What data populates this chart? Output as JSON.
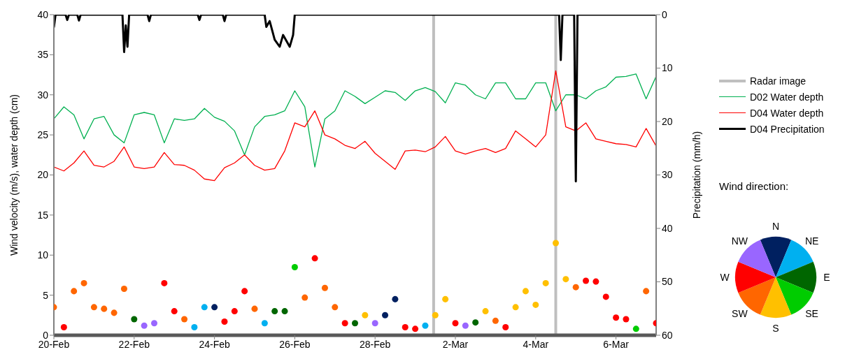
{
  "chart_data": [
    {
      "type": "line",
      "ylabel": "Wind velocity (m/s), water depth (cm)",
      "y2label": "Precipitation (mm/h)",
      "xlim": [
        "--02-20",
        "--03-07"
      ],
      "xticks": [
        {
          "value": "--02-20",
          "label": "20-Feb"
        },
        {
          "value": "--02-22",
          "label": "22-Feb"
        },
        {
          "value": "--02-24",
          "label": "24-Feb"
        },
        {
          "value": "--02-26",
          "label": "26-Feb"
        },
        {
          "value": "--02-28",
          "label": "28-Feb"
        },
        {
          "value": "--03-02",
          "label": "2-Mar"
        },
        {
          "value": "--03-04",
          "label": "4-Mar"
        },
        {
          "value": "--03-06",
          "label": "6-Mar"
        }
      ],
      "ylim": [
        0,
        40
      ],
      "yticks": [
        0,
        5,
        10,
        15,
        20,
        25,
        30,
        35,
        40
      ],
      "y2lim": [
        60,
        0
      ],
      "y2ticks": [
        0,
        10,
        20,
        30,
        40,
        50,
        60
      ],
      "legend": "right",
      "x": [
        "--02-20T00:00",
        "--02-20T06:00",
        "--02-20T12:00",
        "--02-20T18:00",
        "--02-21T00:00",
        "--02-21T06:00",
        "--02-21T12:00",
        "--02-21T18:00",
        "--02-22T00:00",
        "--02-22T06:00",
        "--02-22T12:00",
        "--02-22T18:00",
        "--02-23T00:00",
        "--02-23T06:00",
        "--02-23T12:00",
        "--02-23T18:00",
        "--02-24T00:00",
        "--02-24T06:00",
        "--02-24T12:00",
        "--02-24T18:00",
        "--02-25T00:00",
        "--02-25T06:00",
        "--02-25T12:00",
        "--02-25T18:00",
        "--02-26T00:00",
        "--02-26T06:00",
        "--02-26T12:00",
        "--02-26T18:00",
        "--02-27T00:00",
        "--02-27T06:00",
        "--02-27T12:00",
        "--02-27T18:00",
        "--02-28T00:00",
        "--02-28T06:00",
        "--02-28T12:00",
        "--02-28T18:00",
        "--03-01T00:00",
        "--03-01T06:00",
        "--03-01T12:00",
        "--03-01T18:00",
        "--03-02T00:00",
        "--03-02T06:00",
        "--03-02T12:00",
        "--03-02T18:00",
        "--03-03T00:00",
        "--03-03T06:00",
        "--03-03T12:00",
        "--03-03T18:00",
        "--03-04T00:00",
        "--03-04T06:00",
        "--03-04T12:00",
        "--03-04T18:00",
        "--03-05T00:00",
        "--03-05T06:00",
        "--03-05T12:00",
        "--03-05T18:00",
        "--03-06T00:00",
        "--03-06T06:00",
        "--03-06T12:00",
        "--03-06T18:00",
        "--03-07T00:00"
      ],
      "series": [
        {
          "name": "Radar image",
          "type": "line",
          "color": "#bfbfbf",
          "x": [
            "--03-01T11:00",
            "--03-01T11:00",
            "--03-03T00:00",
            "--03-04T12:00",
            "--03-04T12:00"
          ],
          "values": [
            0,
            40,
            null,
            40,
            0
          ]
        },
        {
          "name": "D02 Water depth",
          "type": "line",
          "color": "#00b050",
          "values": [
            27,
            28.5,
            27.5,
            24.5,
            27,
            27.3,
            25,
            24,
            27.5,
            27.8,
            27.5,
            24,
            27,
            26.8,
            27,
            28.3,
            27.2,
            26.7,
            25.5,
            22.5,
            26,
            27.3,
            27.5,
            28,
            30.5,
            28.5,
            21,
            27,
            28,
            30.5,
            29.8,
            28.9,
            29.7,
            30.5,
            30.3,
            29.3,
            30.5,
            30.9,
            30.4,
            29,
            31.5,
            31.2,
            30,
            29.5,
            31.5,
            31.5,
            29.5,
            29.5,
            31.5,
            31.5,
            28,
            30,
            30,
            29.5,
            30.5,
            31,
            32.2,
            32.3,
            32.6,
            29.5,
            32.3
          ]
        },
        {
          "name": "D04 Water depth",
          "type": "line",
          "color": "#ff0000",
          "values": [
            21,
            20.5,
            21.5,
            23,
            21.2,
            21,
            21.7,
            23.5,
            21,
            20.8,
            21,
            22.8,
            21.3,
            21.2,
            20.6,
            19.5,
            19.3,
            20.9,
            21.5,
            22.5,
            21.2,
            20.6,
            20.8,
            23,
            26.5,
            26,
            28,
            25,
            24.5,
            23.7,
            23.3,
            24.2,
            22.7,
            21.7,
            20.7,
            23,
            23.1,
            22.9,
            23.5,
            24.8,
            23,
            22.6,
            23,
            23.3,
            22.8,
            23.3,
            25.5,
            24.5,
            23.5,
            25,
            33,
            26,
            25.5,
            26.5,
            24.5,
            24.2,
            23.9,
            23.8,
            23.5,
            25.8,
            23.6
          ]
        },
        {
          "name": "D04 Precipitation",
          "type": "line",
          "color": "#000000",
          "axis": "y2",
          "x": [
            "--02-20T00:00",
            "--02-20T01:00",
            "--02-20T07:00",
            "--02-20T08:00",
            "--02-20T09:00",
            "--02-20T14:00",
            "--02-20T15:00",
            "--02-20T16:00",
            "--02-21T17:00",
            "--02-21T18:00",
            "--02-21T19:00",
            "--02-21T20:00",
            "--02-21T21:00",
            "--02-22T08:00",
            "--02-22T09:00",
            "--02-22T10:00",
            "--02-23T14:00",
            "--02-23T15:00",
            "--02-23T16:00",
            "--02-24T05:00",
            "--02-24T06:00",
            "--02-24T07:00",
            "--02-25T06:00",
            "--02-25T07:00",
            "--02-25T09:00",
            "--02-25T12:00",
            "--02-25T15:00",
            "--02-25T17:00",
            "--02-25T21:00",
            "--02-25T23:00",
            "--02-26T00:00",
            "--03-04T14:00",
            "--03-04T15:00",
            "--03-04T16:00",
            "--03-04T23:00",
            "--03-05T00:00",
            "--03-05T01:00",
            "--03-07T00:00"
          ],
          "values": [
            2.4,
            0,
            0,
            1,
            0,
            0,
            1.1,
            0,
            0,
            7,
            2,
            6,
            0,
            0,
            1.2,
            0,
            0,
            1,
            0,
            0,
            1.2,
            0,
            0,
            2.3,
            1.2,
            4.7,
            6,
            3.8,
            6,
            3.8,
            0,
            0,
            8.5,
            0,
            0,
            31.2,
            0,
            0
          ]
        },
        {
          "type": "scatter",
          "values": [
            3.5,
            1.0,
            5.5,
            6.5,
            3.5,
            3.3,
            2.8,
            5.8,
            2.0,
            1.2,
            1.5,
            6.5,
            3.0,
            2.0,
            1.0,
            3.5,
            3.5,
            1.7,
            3.0,
            5.5,
            3.3,
            1.5,
            3.0,
            3.0,
            8.5,
            4.7,
            9.6,
            5.9,
            3.5,
            1.5,
            1.5,
            2.5,
            1.5,
            2.5,
            4.5,
            1.0,
            0.8,
            1.2,
            2.5,
            4.5,
            1.5,
            1.2,
            1.6,
            3.0,
            1.8,
            1.0,
            3.5,
            5.5,
            3.8,
            6.5,
            11.5,
            7.0,
            6.0,
            6.8,
            6.7,
            4.8,
            2.2,
            2.0,
            0.8,
            5.5,
            1.5
          ],
          "colors": [
            "#ff6600",
            "#ff0000",
            "#ff6600",
            "#ff6600",
            "#ff6600",
            "#ff6600",
            "#ff6600",
            "#ff6600",
            "#006600",
            "#9966ff",
            "#9966ff",
            "#ff0000",
            "#ff0000",
            "#ff6600",
            "#00b0f0",
            "#00b0f0",
            "#002060",
            "#ff0000",
            "#ff0000",
            "#ff0000",
            "#ff6600",
            "#00b0f0",
            "#006600",
            "#006600",
            "#00cc00",
            "#ff6600",
            "#ff0000",
            "#ff6600",
            "#ff6600",
            "#ff0000",
            "#006600",
            "#ffc000",
            "#9966ff",
            "#002060",
            "#002060",
            "#ff0000",
            "#ff0000",
            "#00b0f0",
            "#ffc000",
            "#ffc000",
            "#ff0000",
            "#9966ff",
            "#006600",
            "#ffc000",
            "#ff6600",
            "#ff0000",
            "#ffc000",
            "#ffc000",
            "#ffc000",
            "#ffc000",
            "#ffc000",
            "#ffc000",
            "#ff6600",
            "#ff0000",
            "#ff0000",
            "#ff0000",
            "#ff0000",
            "#ff0000",
            "#00cc00",
            "#ff6600",
            "#ff0000"
          ]
        }
      ]
    },
    {
      "type": "pie",
      "title": "Wind direction:",
      "categories": [
        "N",
        "NE",
        "E",
        "SE",
        "S",
        "SW",
        "W",
        "NW"
      ],
      "values": [
        12.5,
        12.5,
        12.5,
        12.5,
        12.5,
        12.5,
        12.5,
        12.5
      ],
      "colors": [
        "#002060",
        "#00b0f0",
        "#006600",
        "#00cc00",
        "#ffc000",
        "#ff6600",
        "#ff0000",
        "#9966ff"
      ]
    }
  ]
}
